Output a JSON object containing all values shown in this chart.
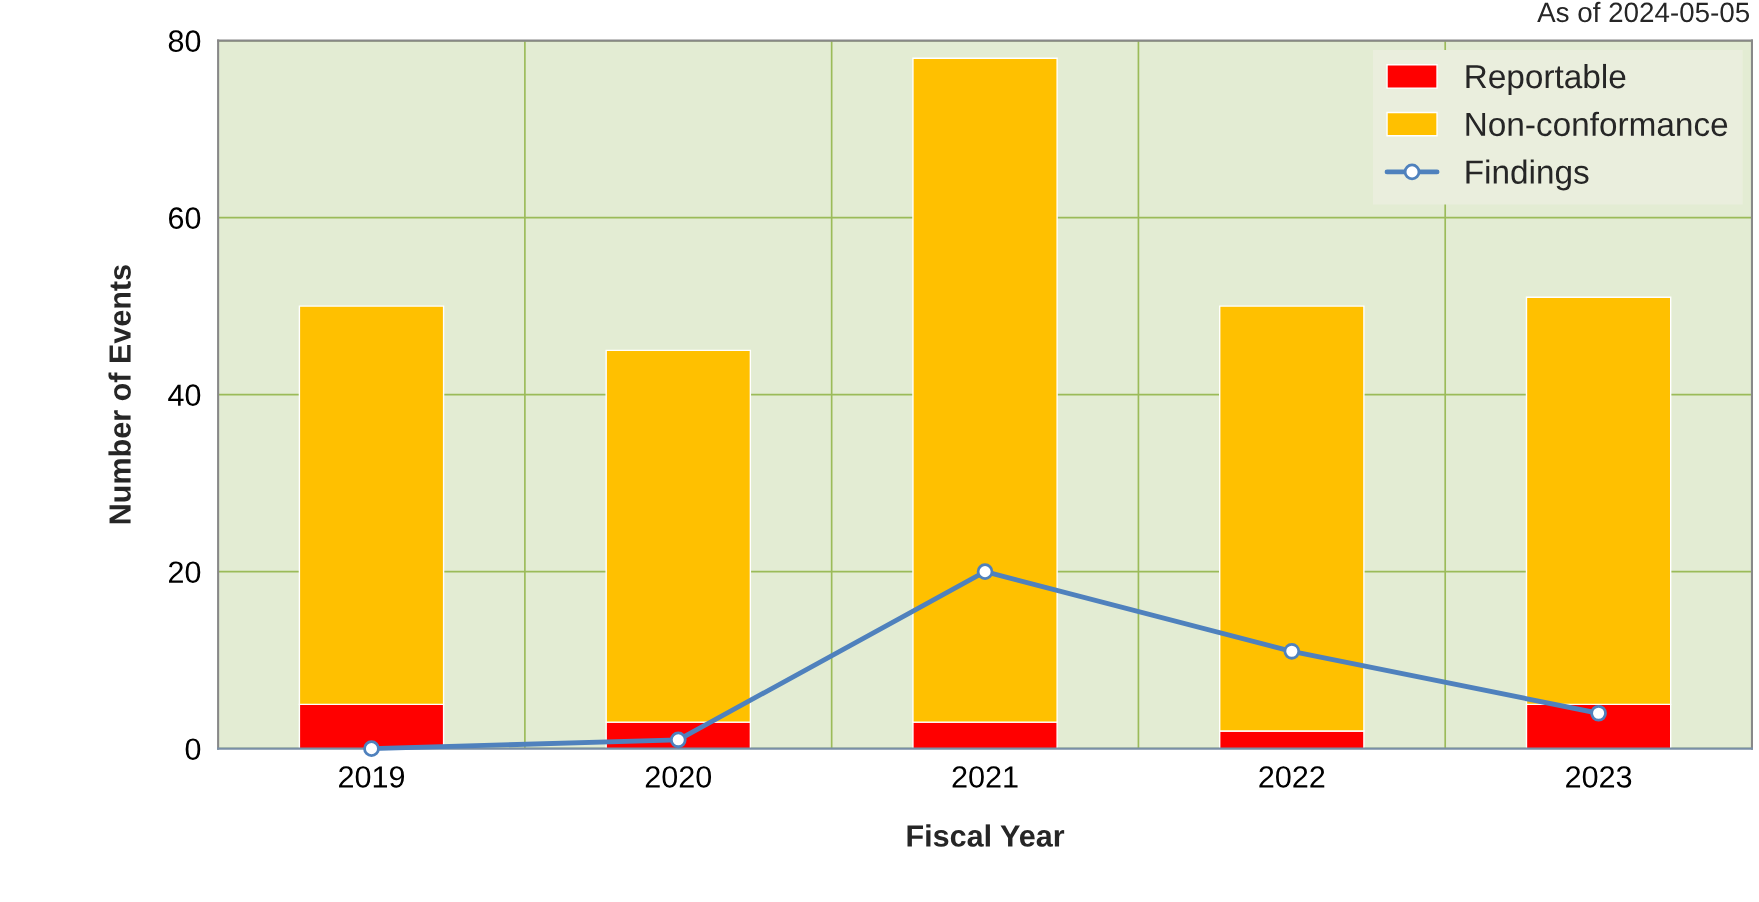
{
  "chart_data": {
    "type": "bar",
    "stacked": true,
    "xlabel": "Fiscal Year",
    "ylabel": "Number of Events",
    "categories": [
      "2019",
      "2020",
      "2021",
      "2022",
      "2023"
    ],
    "series": [
      {
        "name": "Reportable",
        "color": "#ff0000",
        "values": [
          5,
          3,
          3,
          2,
          5
        ]
      },
      {
        "name": "Non-conformance",
        "color": "#ffc000",
        "values": [
          45,
          42,
          75,
          48,
          46
        ]
      },
      {
        "name": "Findings",
        "type": "line",
        "color": "#4f81bd",
        "marker": "circle",
        "values": [
          0,
          1,
          20,
          11,
          4
        ]
      }
    ],
    "ylim": [
      0,
      80
    ],
    "yticks": [
      0,
      20,
      40,
      60,
      80
    ],
    "grid": true,
    "legend": "top right",
    "annotations": [
      "As of 2024-05-05"
    ]
  }
}
